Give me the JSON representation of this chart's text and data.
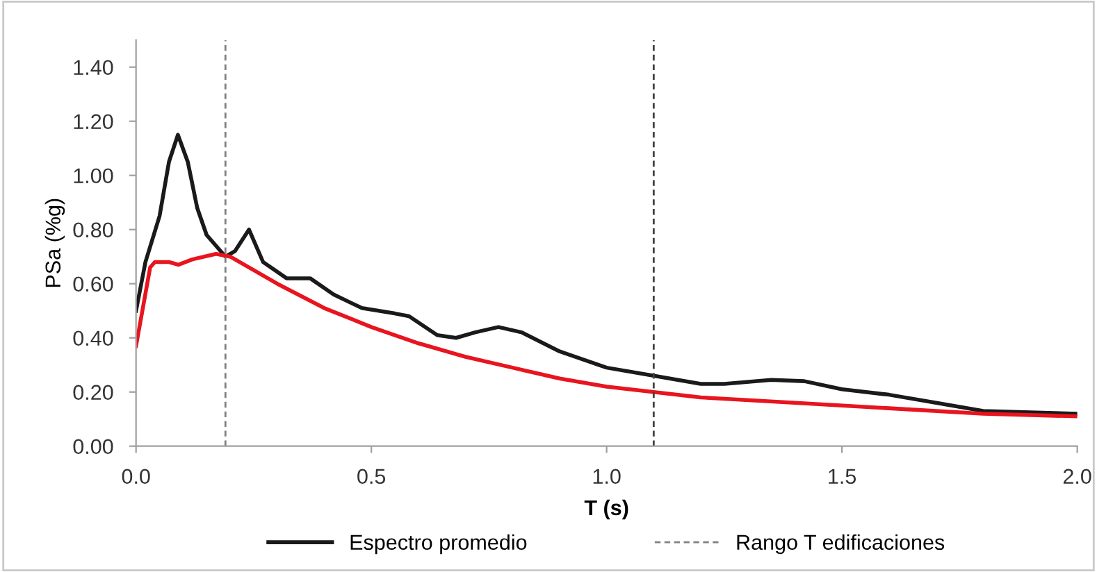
{
  "chart_data": {
    "type": "line",
    "xlabel": "T (s)",
    "ylabel": "PSa (%g)",
    "xlim": [
      0,
      2.0
    ],
    "xticks": [
      {
        "value": 0,
        "label": "0.0"
      },
      {
        "value": 0.5,
        "label": "0.5"
      },
      {
        "value": 1.0,
        "label": "1.0"
      },
      {
        "value": 1.5,
        "label": "1.5"
      },
      {
        "value": 2.0,
        "label": "2.0"
      }
    ],
    "ylim": [
      0,
      1.5
    ],
    "yticks": [
      {
        "value": 0,
        "label": "0.00"
      },
      {
        "value": 0.2,
        "label": "0.20"
      },
      {
        "value": 0.4,
        "label": "0.40"
      },
      {
        "value": 0.6,
        "label": "0.60"
      },
      {
        "value": 0.8,
        "label": "0.80"
      },
      {
        "value": 1.0,
        "label": "1.00"
      },
      {
        "value": 1.2,
        "label": "1.20"
      },
      {
        "value": 1.4,
        "label": "1.40"
      }
    ],
    "grid": false,
    "legend": "bottom",
    "marker": "none",
    "line_style": "solid",
    "series": [
      {
        "name": "Espectro promedio",
        "color": "#1a1a1a",
        "x": [
          0,
          0.02,
          0.05,
          0.07,
          0.089,
          0.11,
          0.13,
          0.15,
          0.19,
          0.21,
          0.24,
          0.27,
          0.32,
          0.37,
          0.42,
          0.48,
          0.55,
          0.58,
          0.64,
          0.68,
          0.72,
          0.77,
          0.82,
          0.9,
          1.0,
          1.1,
          1.2,
          1.25,
          1.35,
          1.42,
          1.5,
          1.6,
          1.7,
          1.8,
          1.9,
          2.0
        ],
        "values": [
          0.5,
          0.68,
          0.85,
          1.05,
          1.15,
          1.05,
          0.88,
          0.78,
          0.7,
          0.72,
          0.8,
          0.68,
          0.62,
          0.62,
          0.56,
          0.51,
          0.49,
          0.48,
          0.41,
          0.4,
          0.42,
          0.44,
          0.42,
          0.35,
          0.29,
          0.26,
          0.23,
          0.23,
          0.245,
          0.24,
          0.21,
          0.19,
          0.16,
          0.13,
          0.125,
          0.12
        ]
      },
      {
        "color": "#e8141e",
        "x": [
          0,
          0.03,
          0.04,
          0.07,
          0.09,
          0.12,
          0.17,
          0.2,
          0.3,
          0.4,
          0.5,
          0.6,
          0.7,
          0.8,
          0.9,
          1.0,
          1.1,
          1.2,
          1.4,
          1.6,
          1.8,
          2.0
        ],
        "values": [
          0.37,
          0.66,
          0.68,
          0.68,
          0.67,
          0.69,
          0.71,
          0.7,
          0.6,
          0.51,
          0.44,
          0.38,
          0.33,
          0.29,
          0.25,
          0.22,
          0.2,
          0.18,
          0.16,
          0.14,
          0.12,
          0.11
        ]
      }
    ],
    "ref_lines": [
      {
        "axis": "x",
        "value": 0.19,
        "label": "Rango T edificaciones",
        "color": "#808080",
        "line_style": "dashed"
      },
      {
        "axis": "x",
        "value": 1.1,
        "color": "#404040",
        "line_style": "dashed"
      }
    ]
  }
}
